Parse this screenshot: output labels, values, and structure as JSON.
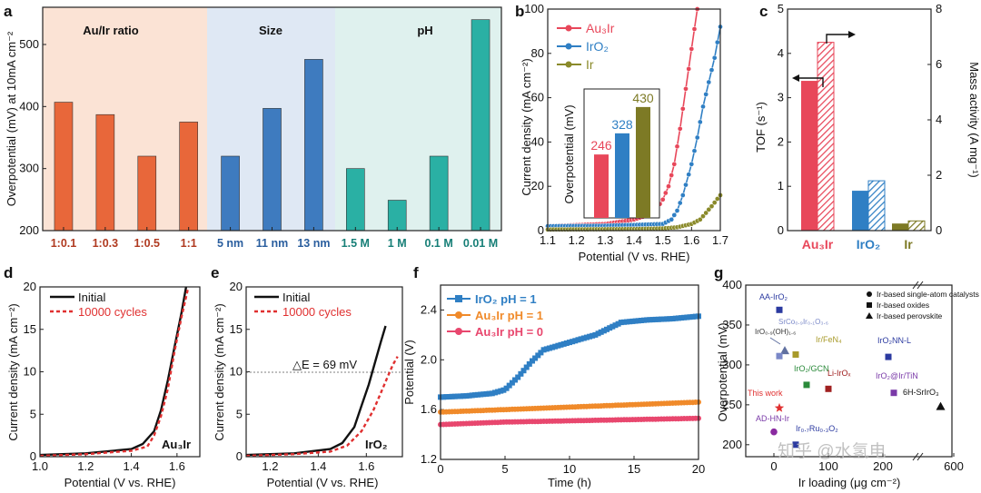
{
  "panel_labels": [
    "a",
    "b",
    "c",
    "d",
    "e",
    "f",
    "g"
  ],
  "chart_data": [
    {
      "id": "a",
      "type": "bar",
      "ylabel": "Overpotential (mV) at 10mA cm⁻²",
      "ylim": [
        200,
        560
      ],
      "yticks": [
        200,
        300,
        400,
        500
      ],
      "groups": [
        {
          "title": "Au/Ir ratio",
          "color": "#e8673a",
          "bg": "#fbe3d5",
          "title_color": "#c8462a",
          "label_color": "#b03a20",
          "categories": [
            "1:0.1",
            "1:0.3",
            "1:0.5",
            "1:1"
          ],
          "values": [
            407,
            387,
            320,
            375
          ]
        },
        {
          "title": "Size",
          "color": "#3e7bbf",
          "bg": "#dfe8f4",
          "title_color": "#2f64a8",
          "label_color": "#2a5e9e",
          "categories": [
            "5 nm",
            "11 nm",
            "13 nm"
          ],
          "values": [
            320,
            397,
            476
          ]
        },
        {
          "title": "pH",
          "color": "#2ab0a4",
          "bg": "#dff1ee",
          "title_color": "#1d9990",
          "label_color": "#177f77",
          "categories": [
            "1.5 M",
            "1 M",
            "0.1 M",
            "0.01 M"
          ],
          "values": [
            300,
            249,
            320,
            540
          ]
        }
      ]
    },
    {
      "id": "b",
      "type": "line",
      "xlabel": "Potential (V vs. RHE)",
      "ylabel": "Current density (mA cm⁻²)",
      "xlim": [
        1.1,
        1.7
      ],
      "ylim": [
        0,
        100
      ],
      "xticks": [
        1.1,
        1.2,
        1.3,
        1.4,
        1.5,
        1.6,
        1.7
      ],
      "yticks": [
        0,
        20,
        40,
        60,
        80,
        100
      ],
      "series": [
        {
          "name": "Au₃Ir",
          "color": "#e8475a",
          "x": [
            1.1,
            1.2,
            1.3,
            1.4,
            1.45,
            1.48,
            1.5,
            1.52,
            1.54,
            1.56,
            1.58,
            1.6,
            1.62
          ],
          "y": [
            2,
            2.5,
            3,
            5,
            7,
            10,
            14,
            20,
            30,
            46,
            64,
            82,
            100
          ]
        },
        {
          "name": "IrO₂",
          "color": "#2f7fc4",
          "x": [
            1.1,
            1.3,
            1.5,
            1.53,
            1.55,
            1.57,
            1.6,
            1.62,
            1.64,
            1.66,
            1.68,
            1.7
          ],
          "y": [
            2,
            2.2,
            3,
            5,
            9,
            16,
            30,
            42,
            56,
            67,
            78,
            92
          ]
        },
        {
          "name": "Ir",
          "color": "#8a8a2a",
          "x": [
            1.1,
            1.4,
            1.5,
            1.55,
            1.6,
            1.63,
            1.65,
            1.67,
            1.7
          ],
          "y": [
            0.5,
            0.7,
            1,
            1.5,
            3,
            5,
            8,
            11,
            16
          ]
        }
      ],
      "inset": {
        "type": "bar",
        "ylabel": "Overpotential (mV)",
        "categories": [
          "Au₃Ir",
          "IrO₂",
          "Ir"
        ],
        "values": [
          246,
          328,
          430
        ],
        "labels": [
          "246",
          "328",
          "430"
        ],
        "colors": [
          "#e8475a",
          "#2f7fc4",
          "#7d7a25"
        ],
        "ylim": [
          0,
          500
        ]
      }
    },
    {
      "id": "c",
      "type": "bar",
      "categories": [
        "Au₃Ir",
        "IrO₂",
        "Ir"
      ],
      "ylabel": "TOF (s⁻¹)",
      "ylabel_right": "Mass activity (A mg⁻¹)",
      "ylim": [
        0,
        5
      ],
      "yticks": [
        0,
        1,
        2,
        3,
        4,
        5
      ],
      "ylim_right": [
        0,
        8
      ],
      "yticks_right": [
        0,
        2,
        4,
        6,
        8
      ],
      "colors": [
        "#e8475a",
        "#2f7fc4",
        "#7d7a25"
      ],
      "series": [
        {
          "name": "TOF",
          "axis": "left",
          "values": [
            3.38,
            0.9,
            0.16
          ]
        },
        {
          "name": "Mass activity",
          "axis": "right",
          "hatched": true,
          "values": [
            6.8,
            1.8,
            0.35
          ]
        }
      ]
    },
    {
      "id": "d",
      "type": "line",
      "xlabel": "Potential (V vs. RHE)",
      "ylabel": "Current density (mA cm⁻²)",
      "xlim": [
        1.0,
        1.7
      ],
      "ylim": [
        0,
        20
      ],
      "xticks": [
        1.0,
        1.2,
        1.4,
        1.6
      ],
      "yticks": [
        0,
        5,
        10,
        15,
        20
      ],
      "annotation": "Au₃Ir",
      "series": [
        {
          "name": "Initial",
          "color": "#111111",
          "dash": false,
          "x": [
            1.0,
            1.2,
            1.4,
            1.45,
            1.5,
            1.53,
            1.56,
            1.59,
            1.62,
            1.64
          ],
          "y": [
            0.2,
            0.4,
            0.9,
            1.5,
            3,
            5.5,
            9,
            13,
            17,
            20
          ]
        },
        {
          "name": "10000 cycles",
          "color": "#e03030",
          "dash": true,
          "x": [
            1.0,
            1.2,
            1.4,
            1.47,
            1.5,
            1.53,
            1.56,
            1.59,
            1.62,
            1.65
          ],
          "y": [
            0.1,
            0.3,
            0.7,
            1.2,
            2.5,
            4.8,
            8,
            12.5,
            16.5,
            20
          ]
        }
      ]
    },
    {
      "id": "e",
      "type": "line",
      "xlabel": "Potential (V vs. RHE)",
      "ylabel": "Current density (mA cm⁻²)",
      "xlim": [
        1.1,
        1.75
      ],
      "ylim": [
        0,
        20
      ],
      "xticks": [
        1.2,
        1.4,
        1.6
      ],
      "yticks": [
        0,
        5,
        10,
        15,
        20
      ],
      "annotation": "IrO₂",
      "delta_label": "△E = 69 mV",
      "series": [
        {
          "name": "Initial",
          "color": "#111111",
          "dash": false,
          "x": [
            1.1,
            1.3,
            1.45,
            1.5,
            1.55,
            1.58,
            1.61,
            1.64,
            1.66,
            1.68
          ],
          "y": [
            0.2,
            0.4,
            0.9,
            1.6,
            3.5,
            6,
            8.5,
            11.5,
            13.5,
            15.4
          ]
        },
        {
          "name": "10000 cycles",
          "color": "#e03030",
          "dash": true,
          "x": [
            1.1,
            1.3,
            1.45,
            1.52,
            1.58,
            1.63,
            1.66,
            1.69,
            1.71,
            1.73
          ],
          "y": [
            0.1,
            0.3,
            0.6,
            1.3,
            3,
            5.5,
            7.5,
            9.5,
            10.8,
            11.8
          ]
        }
      ]
    },
    {
      "id": "f",
      "type": "line",
      "xlabel": "Time (h)",
      "ylabel": "Potential (V)",
      "xlim": [
        0,
        20
      ],
      "ylim": [
        1.2,
        2.6
      ],
      "xticks": [
        0,
        5,
        10,
        15,
        20
      ],
      "yticks": [
        1.2,
        1.6,
        2.0,
        2.4
      ],
      "series": [
        {
          "name": "IrO₂  pH = 1",
          "color": "#2f7fc4",
          "x": [
            0,
            2,
            4,
            5,
            6,
            7,
            8,
            10,
            12,
            13,
            14,
            16,
            18,
            20
          ],
          "y": [
            1.7,
            1.71,
            1.73,
            1.76,
            1.86,
            1.98,
            2.08,
            2.14,
            2.2,
            2.25,
            2.3,
            2.32,
            2.33,
            2.35
          ]
        },
        {
          "name": "Au₃Ir pH = 1",
          "color": "#f08a2a",
          "x": [
            0,
            5,
            10,
            15,
            20
          ],
          "y": [
            1.58,
            1.6,
            1.62,
            1.64,
            1.66
          ]
        },
        {
          "name": "Au₃Ir pH = 0",
          "color": "#e8476e",
          "x": [
            0,
            5,
            10,
            15,
            20
          ],
          "y": [
            1.48,
            1.5,
            1.51,
            1.52,
            1.53
          ]
        }
      ]
    },
    {
      "id": "g",
      "type": "scatter",
      "xlabel": "Ir loading (μg cm⁻²)",
      "ylabel": "Overpotential (mV)",
      "ylim": [
        185,
        400
      ],
      "yticks": [
        200,
        250,
        300,
        350,
        400
      ],
      "xticks": [
        "0",
        "100",
        "200",
        "600"
      ],
      "legend": [
        "Ir-based single-atom catalysts",
        "Ir-based oxides",
        "Ir-based perovskite"
      ],
      "points": [
        {
          "label": "AA-IrO₂",
          "x": 10,
          "y": 369,
          "marker": "square",
          "color": "#2b3aa0",
          "label_color": "#2b3aa0"
        },
        {
          "label": "IrO₀.₉(OH)₁.₆",
          "x": 20,
          "y": 318,
          "marker": "triangle",
          "color": "#6070a0",
          "label_color": "#333333"
        },
        {
          "label": "SrCo₀.₉Ir₀.₁O₃.₆",
          "x": 10,
          "y": 311,
          "marker": "square",
          "color": "#7a88c8",
          "label_color": "#7a88c8"
        },
        {
          "label": "Ir/FeN₄",
          "x": 40,
          "y": 313,
          "marker": "square",
          "color": "#a89a2a",
          "label_color": "#a89a2a"
        },
        {
          "label": "IrO₂NN-L",
          "x": 210,
          "y": 310,
          "marker": "square",
          "color": "#2b3aa0",
          "label_color": "#2b3aa0"
        },
        {
          "label": "IrO₂/GCN",
          "x": 60,
          "y": 275,
          "marker": "square",
          "color": "#2a8a3a",
          "label_color": "#2a8a3a"
        },
        {
          "label": "Li-IrOₓ",
          "x": 100,
          "y": 270,
          "marker": "square",
          "color": "#a02020",
          "label_color": "#a02020"
        },
        {
          "label": "IrO₂@Ir/TiN",
          "x": 220,
          "y": 265,
          "marker": "square",
          "color": "#7a3aa8",
          "label_color": "#7a3aa8"
        },
        {
          "label": "6H-SrIrO₃",
          "x": 480,
          "y": 248,
          "marker": "triangle",
          "color": "#111111",
          "label_color": "#111111"
        },
        {
          "label": "This work",
          "x": 10,
          "y": 246,
          "marker": "star",
          "color": "#e03030",
          "label_color": "#e03030"
        },
        {
          "label": "AD-HN-Ir",
          "x": 0,
          "y": 216,
          "marker": "circle",
          "color": "#8a2aa0",
          "label_color": "#7a3aa8"
        },
        {
          "label": "Ir₀.₇Ru₀.₃O₂",
          "x": 40,
          "y": 200,
          "marker": "square",
          "color": "#2b3aa0",
          "label_color": "#2b3aa0"
        }
      ]
    }
  ],
  "watermark": "知乎 @水氢电"
}
